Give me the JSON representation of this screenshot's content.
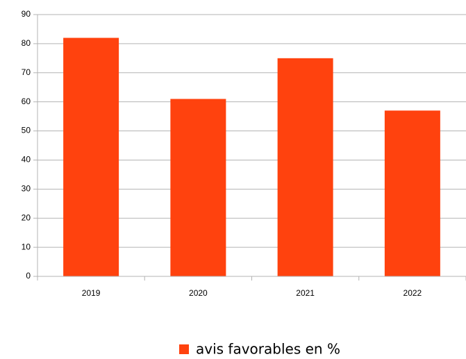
{
  "chart_data": {
    "type": "bar",
    "categories": [
      "2019",
      "2020",
      "2021",
      "2022"
    ],
    "series": [
      {
        "name": "avis favorables en %",
        "color": "#ff420e",
        "values": [
          82,
          61,
          75,
          57
        ]
      }
    ],
    "ylim": [
      0,
      90
    ],
    "yticks": [
      0,
      10,
      20,
      30,
      40,
      50,
      60,
      70,
      80,
      90
    ],
    "grid": true,
    "legend": "bottom"
  }
}
